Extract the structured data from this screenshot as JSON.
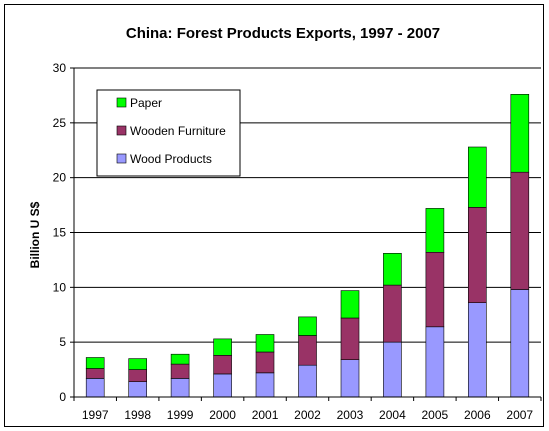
{
  "chart_data": {
    "type": "bar",
    "stacked": true,
    "title": "China: Forest Products Exports, 1997 - 2007",
    "xlabel": "",
    "ylabel": "Billion U S$",
    "ylim": [
      0,
      30
    ],
    "yticks": [
      0,
      5,
      10,
      15,
      20,
      25,
      30
    ],
    "grid": true,
    "legend_position": "top-left",
    "categories": [
      "1997",
      "1998",
      "1999",
      "2000",
      "2001",
      "2002",
      "2003",
      "2004",
      "2005",
      "2006",
      "2007"
    ],
    "series": [
      {
        "name": "Wood Products",
        "color": "#9999ff",
        "values": [
          1.7,
          1.4,
          1.7,
          2.1,
          2.2,
          2.9,
          3.4,
          5.0,
          6.4,
          8.6,
          9.8
        ]
      },
      {
        "name": "Wooden Furniture",
        "color": "#993366",
        "values": [
          0.9,
          1.1,
          1.3,
          1.7,
          1.9,
          2.7,
          3.8,
          5.2,
          6.8,
          8.7,
          10.7
        ]
      },
      {
        "name": "Paper",
        "color": "#00ff00",
        "values": [
          1.0,
          1.0,
          0.9,
          1.5,
          1.6,
          1.7,
          2.5,
          2.9,
          4.0,
          5.5,
          7.1
        ]
      }
    ],
    "legend_order": [
      "Paper",
      "Wooden Furniture",
      "Wood Products"
    ]
  }
}
